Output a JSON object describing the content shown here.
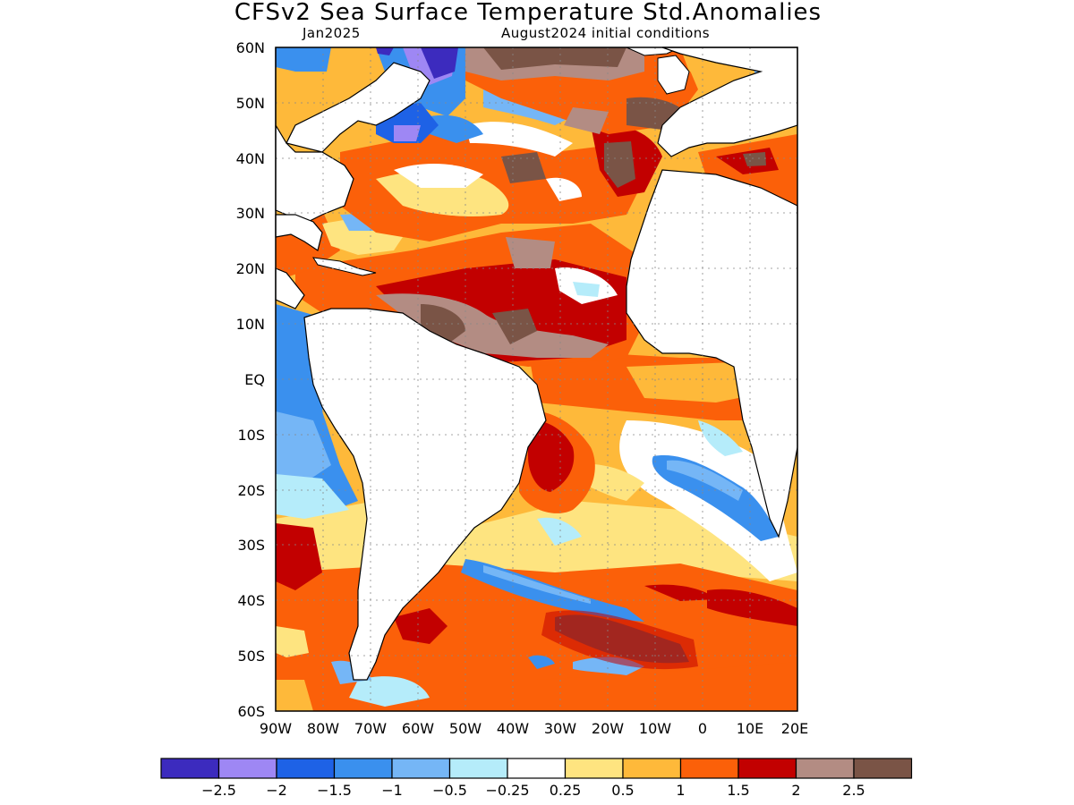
{
  "title": "CFSv2 Sea Surface Temperature Std.Anomalies",
  "subtitle_left": "Jan2025",
  "subtitle_right": "August2024 initial conditions",
  "lat_labels": [
    "60N",
    "50N",
    "40N",
    "30N",
    "20N",
    "10N",
    "EQ",
    "10S",
    "20S",
    "30S",
    "40S",
    "50S",
    "60S"
  ],
  "lon_labels": [
    "90W",
    "80W",
    "70W",
    "60W",
    "50W",
    "40W",
    "30W",
    "20W",
    "10W",
    "0",
    "10E",
    "20E"
  ],
  "colorbar": {
    "colors": [
      "#3c2bbe",
      "#9e87f4",
      "#1e62e6",
      "#3a90ee",
      "#75b6f6",
      "#b5ecfa",
      "#ffffff",
      "#fee480",
      "#feb93a",
      "#fb6009",
      "#c20000",
      "#b38c83",
      "#7a5446"
    ],
    "labels": [
      "−2.5",
      "−2",
      "−1.5",
      "−1",
      "−0.5",
      "−0.25",
      "0.25",
      "0.5",
      "1",
      "1.5",
      "2",
      "2.5"
    ]
  },
  "map_data": {
    "region": "Atlantic Ocean",
    "lon_range": [
      -90,
      20
    ],
    "lat_range": [
      -60,
      60
    ],
    "variable": "SST standardized anomaly",
    "land_color": "#ffffff",
    "features": [
      {
        "area": "Equatorial/tropical North Atlantic",
        "anomaly": "2 to 2.5+"
      },
      {
        "area": "Gulf of Guinea / SE Atlantic",
        "anomaly": "0.5 to 1.5"
      },
      {
        "area": "NE Pacific coast of South America",
        "anomaly": "-1 to -1.5"
      },
      {
        "area": "South Atlantic 20-35S, 0-15E",
        "anomaly": "-0.5 to -1.5"
      },
      {
        "area": "Labrador Sea",
        "anomaly": "-2 to -2.5"
      },
      {
        "area": "North Atlantic 45-60N",
        "anomaly": "2 to 2.5+"
      }
    ]
  }
}
